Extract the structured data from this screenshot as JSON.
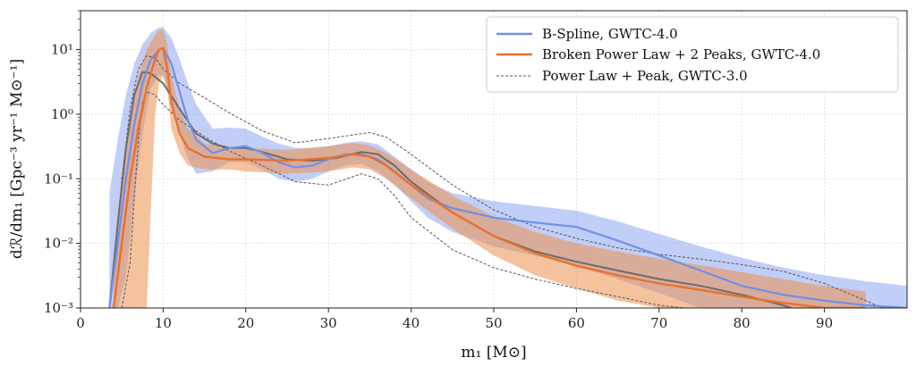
{
  "chart_data": {
    "type": "line",
    "title": "",
    "xlabel": "m₁ [M⊙]",
    "ylabel": "dℛ/dm₁ [Gpc⁻³ yr⁻¹ M⊙⁻¹]",
    "xlim": [
      0,
      100
    ],
    "ylim": [
      0.001,
      40
    ],
    "yscale": "log",
    "grid": true,
    "legend_position": "top-right",
    "x_ticks": [
      "0",
      "10",
      "20",
      "30",
      "40",
      "50",
      "60",
      "70",
      "80",
      "90"
    ],
    "y_ticks": [
      {
        "value": 0.001,
        "label": "10⁻³"
      },
      {
        "value": 0.01,
        "label": "10⁻²"
      },
      {
        "value": 0.1,
        "label": "10⁻¹"
      },
      {
        "value": 1,
        "label": "10⁰"
      },
      {
        "value": 10,
        "label": "10¹"
      }
    ],
    "series": [
      {
        "name": "B-Spline, GWTC-4.0",
        "color": "#6f8fe8",
        "style": "solid",
        "x": [
          3.5,
          4.5,
          5.5,
          6.5,
          7.5,
          8.5,
          9.5,
          10,
          11,
          12,
          13,
          14,
          16,
          18,
          20,
          22,
          24,
          26,
          28,
          30,
          32,
          34,
          36,
          38,
          40,
          42,
          45,
          50,
          55,
          60,
          65,
          70,
          75,
          80,
          85,
          90,
          95,
          100
        ],
        "y": [
          0.001,
          0.01,
          0.1,
          0.7,
          3,
          7,
          10,
          10.5,
          6,
          2.2,
          0.8,
          0.4,
          0.25,
          0.3,
          0.32,
          0.25,
          0.18,
          0.15,
          0.16,
          0.2,
          0.24,
          0.24,
          0.2,
          0.13,
          0.08,
          0.05,
          0.035,
          0.025,
          0.021,
          0.018,
          0.011,
          0.0065,
          0.0038,
          0.0022,
          0.0016,
          0.0013,
          0.0011,
          0.001
        ],
        "band_upper": [
          0.06,
          0.4,
          2,
          6,
          12,
          18,
          22,
          22,
          15,
          7,
          3,
          1.4,
          0.6,
          0.62,
          0.6,
          0.45,
          0.35,
          0.3,
          0.3,
          0.32,
          0.36,
          0.38,
          0.34,
          0.22,
          0.14,
          0.09,
          0.06,
          0.045,
          0.038,
          0.032,
          0.022,
          0.014,
          0.009,
          0.006,
          0.0042,
          0.0032,
          0.0026,
          0.0022
        ],
        "band_lower": [
          0.001,
          0.001,
          0.003,
          0.05,
          0.5,
          2.5,
          4,
          4,
          1.5,
          0.5,
          0.2,
          0.12,
          0.13,
          0.18,
          0.18,
          0.14,
          0.1,
          0.09,
          0.1,
          0.13,
          0.16,
          0.17,
          0.13,
          0.08,
          0.045,
          0.025,
          0.015,
          0.009,
          0.0065,
          0.0045,
          0.0028,
          0.0017,
          0.001,
          0.001,
          0.001,
          0.001,
          0.001,
          0.001
        ]
      },
      {
        "name": "Broken Power Law + 2 Peaks, GWTC-4.0",
        "color": "#e8712d",
        "style": "solid",
        "x": [
          4,
          5,
          6,
          7,
          8,
          9,
          9.5,
          10,
          10.5,
          11,
          12,
          13,
          15,
          18,
          20,
          25,
          30,
          33,
          35,
          37,
          40,
          45,
          50,
          55,
          60,
          65,
          70,
          75,
          80,
          85,
          90,
          95
        ],
        "y": [
          0.001,
          0.01,
          0.1,
          0.6,
          2.5,
          7,
          10,
          10.5,
          5,
          1.5,
          0.5,
          0.3,
          0.22,
          0.2,
          0.2,
          0.19,
          0.21,
          0.24,
          0.22,
          0.16,
          0.08,
          0.03,
          0.013,
          0.007,
          0.0045,
          0.0032,
          0.0024,
          0.0019,
          0.0015,
          0.0012,
          0.001,
          0.001
        ],
        "band_upper": [
          0.005,
          0.08,
          0.7,
          4,
          10,
          17,
          20,
          20,
          12,
          4,
          1.2,
          0.6,
          0.35,
          0.3,
          0.3,
          0.28,
          0.32,
          0.36,
          0.33,
          0.25,
          0.14,
          0.055,
          0.026,
          0.015,
          0.01,
          0.0075,
          0.0058,
          0.0046,
          0.0036,
          0.0028,
          0.0022,
          0.0018
        ],
        "band_lower": [
          0.001,
          0.001,
          0.001,
          0.001,
          0.001,
          0.9,
          3,
          4,
          2.5,
          0.6,
          0.25,
          0.16,
          0.14,
          0.14,
          0.13,
          0.12,
          0.13,
          0.15,
          0.14,
          0.1,
          0.05,
          0.017,
          0.0065,
          0.0032,
          0.002,
          0.0013,
          0.001,
          0.001,
          0.001,
          0.001,
          0.001,
          0.001
        ]
      },
      {
        "name": "",
        "color": "#6b6b6b",
        "style": "solid",
        "x": [
          3.5,
          4.5,
          5.5,
          6.5,
          7.5,
          8.5,
          10,
          12,
          14,
          16,
          18,
          20,
          22,
          25,
          28,
          31,
          34,
          36,
          38,
          40,
          45,
          50,
          55,
          60,
          65,
          70,
          75,
          80,
          85,
          86
        ],
        "y": [
          0.001,
          0.02,
          0.3,
          2,
          4.5,
          4.3,
          3,
          1.2,
          0.5,
          0.35,
          0.3,
          0.3,
          0.26,
          0.2,
          0.19,
          0.21,
          0.26,
          0.24,
          0.16,
          0.09,
          0.03,
          0.013,
          0.0075,
          0.0052,
          0.0038,
          0.0028,
          0.0022,
          0.0016,
          0.0011,
          0.001
        ]
      },
      {
        "name": "Power Law + Peak, GWTC-3.0",
        "color": "#555555",
        "style": "dashed",
        "band_upper_x": [
          4,
          5,
          6,
          7,
          8,
          9,
          10,
          12,
          15,
          18,
          22,
          26,
          30,
          34,
          35,
          37,
          40,
          45,
          50,
          55,
          60,
          65,
          70,
          75,
          80,
          85,
          90,
          95,
          97
        ],
        "band_upper": [
          0.003,
          0.1,
          1.2,
          5,
          8,
          7.5,
          5,
          3,
          1.8,
          1.05,
          0.55,
          0.36,
          0.42,
          0.5,
          0.52,
          0.44,
          0.24,
          0.08,
          0.033,
          0.018,
          0.012,
          0.0085,
          0.0068,
          0.0057,
          0.0047,
          0.0037,
          0.0024,
          0.0013,
          0.001
        ],
        "band_lower_x": [
          5,
          6,
          6.5,
          7,
          7.5,
          8,
          9,
          10,
          12,
          15,
          18,
          22,
          26,
          30,
          34,
          36,
          38,
          40,
          45,
          50,
          55,
          60,
          65,
          70,
          73
        ],
        "band_lower": [
          0.001,
          0.005,
          0.05,
          0.4,
          1.5,
          2.2,
          2,
          1.4,
          0.8,
          0.45,
          0.27,
          0.16,
          0.09,
          0.08,
          0.12,
          0.1,
          0.055,
          0.025,
          0.008,
          0.0042,
          0.0028,
          0.002,
          0.0015,
          0.0011,
          0.001
        ]
      }
    ]
  }
}
